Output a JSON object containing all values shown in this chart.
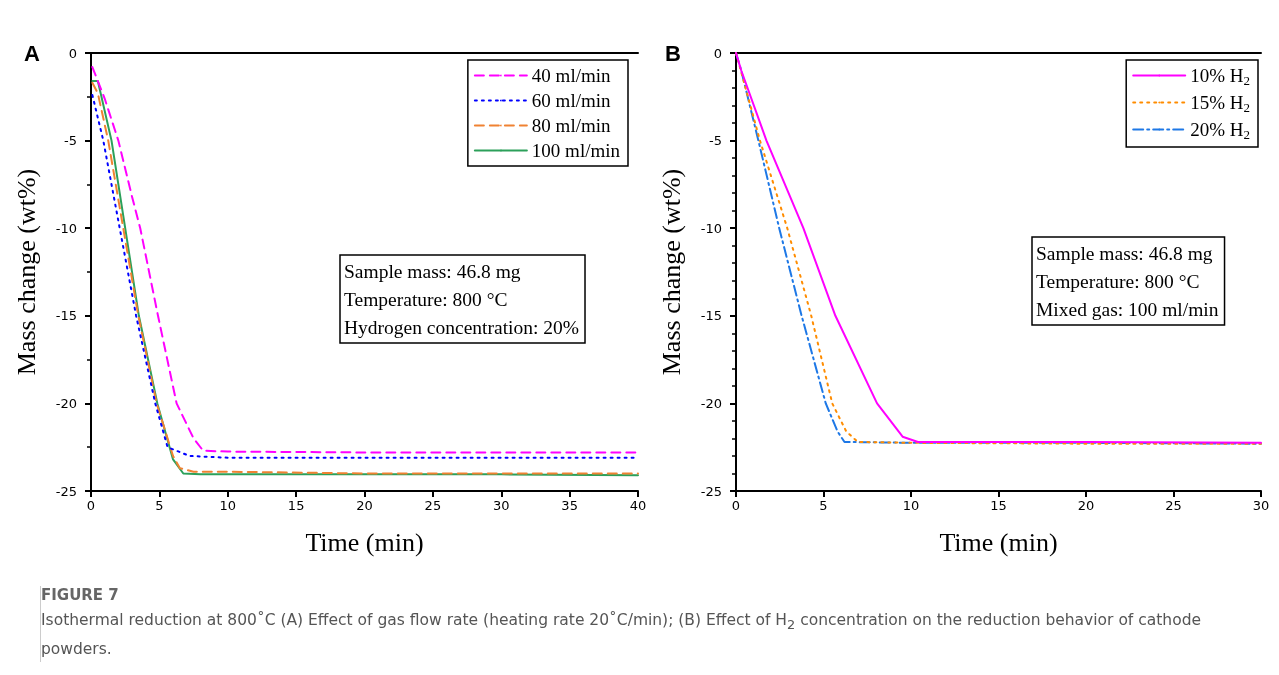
{
  "chart_data": [
    {
      "type": "line",
      "title": "A",
      "xlabel": "Time (min)",
      "ylabel": "Mass change (wt%)",
      "xlim": [
        0,
        40
      ],
      "xticks": [
        0,
        5,
        10,
        15,
        20,
        25,
        30,
        35,
        40
      ],
      "ylim": [
        -25,
        0
      ],
      "yticks": [
        -25,
        -20,
        -15,
        -10,
        -5,
        0
      ],
      "grid": false,
      "legend": "top right",
      "marker": "none",
      "annotations": [
        "Sample mass: 46.8 mg",
        "Temperature: 800 °C",
        "Hydrogen concentration: 20%"
      ],
      "series": [
        {
          "name": "40 ml/min",
          "color": "#ff00ff",
          "line_style": "dashed",
          "x": [
            0.1,
            1,
            2,
            3,
            3.6,
            4.9,
            6.26,
            7.5,
            8.2,
            10,
            20,
            30,
            40
          ],
          "values": [
            -0.8,
            -2.6,
            -5,
            -8.2,
            -10,
            -15,
            -20,
            -22.0,
            -22.7,
            -22.75,
            -22.8,
            -22.8,
            -22.8
          ]
        },
        {
          "name": "60 ml/min",
          "color": "#0000ff",
          "line_style": "dotted",
          "x": [
            0.1,
            0.9,
            2.1,
            3.3,
            4.7,
            5.6,
            7.2,
            10,
            20,
            30,
            40
          ],
          "values": [
            -2.4,
            -5,
            -10,
            -15,
            -20,
            -22.5,
            -23.0,
            -23.1,
            -23.1,
            -23.1,
            -23.1
          ]
        },
        {
          "name": "80 ml/min",
          "color": "#f08232",
          "line_style": "dashed",
          "x": [
            0.1,
            0.5,
            1.26,
            2.36,
            3.46,
            4.8,
            6.0,
            6.5,
            7.5,
            10,
            20,
            30,
            40
          ],
          "values": [
            -1.7,
            -2.3,
            -5,
            -10,
            -15,
            -20,
            -23,
            -23.7,
            -23.9,
            -23.9,
            -24,
            -24,
            -24
          ]
        },
        {
          "name": "100 ml/min",
          "color": "#2ca05a",
          "line_style": "solid",
          "x": [
            0.1,
            0.5,
            1.5,
            2.5,
            3.5,
            4.85,
            6.0,
            6.75,
            8,
            20,
            30,
            40
          ],
          "values": [
            -1.6,
            -1.6,
            -5,
            -10,
            -15,
            -20,
            -23.2,
            -24,
            -24.05,
            -24.05,
            -24.05,
            -24.1
          ]
        }
      ]
    },
    {
      "type": "line",
      "title": "B",
      "xlabel": "Time (min)",
      "ylabel": "Mass change (wt%)",
      "xlim": [
        0,
        30
      ],
      "xticks": [
        0,
        5,
        10,
        15,
        20,
        25,
        30
      ],
      "ylim": [
        -25,
        0
      ],
      "yticks": [
        -25,
        -20,
        -15,
        -10,
        -5,
        0
      ],
      "grid": false,
      "legend": "top right",
      "marker": "none",
      "annotations": [
        "Sample mass: 46.8 mg",
        "Temperature: 800 °C",
        "Mixed gas: 100 ml/min"
      ],
      "series": [
        {
          "name": "10% H$_{2}$",
          "color": "#ff00ff",
          "line_style": "solid",
          "x": [
            0,
            0.3,
            1.74,
            3.85,
            5.68,
            8.06,
            9.52,
            10.4,
            15,
            20,
            30
          ],
          "values": [
            0,
            -1,
            -5,
            -10,
            -15,
            -20,
            -21.9,
            -22.2,
            -22.2,
            -22.2,
            -22.25
          ]
        },
        {
          "name": "15% H$_{2}$",
          "color": "#ff8c00",
          "line_style": "dotted",
          "x": [
            0,
            1.37,
            2.93,
            4.3,
            5.5,
            6.3,
            6.96,
            10,
            20,
            30
          ],
          "values": [
            0,
            -5,
            -10,
            -15,
            -20,
            -21.6,
            -22.2,
            -22.25,
            -22.3,
            -22.3
          ]
        },
        {
          "name": "20% H$_{2}$",
          "color": "#1e78e6",
          "line_style": "dashdot",
          "x": [
            0,
            0.3,
            1.28,
            2.47,
            3.75,
            5.13,
            5.8,
            6.2,
            10,
            20,
            30
          ],
          "values": [
            0,
            -1,
            -5,
            -10,
            -15,
            -20,
            -21.6,
            -22.2,
            -22.25,
            -22.25,
            -22.3
          ]
        }
      ]
    },
    {
      "type": "other",
      "title": "FIGURE 7",
      "annotations": [
        "Isothermal reduction at 800˚C (A) Effect of gas flow rate (heating rate 20˚C/min); (B) Effect of H$_{2}$ concentration on the reduction behavior of cathode powders."
      ]
    }
  ]
}
